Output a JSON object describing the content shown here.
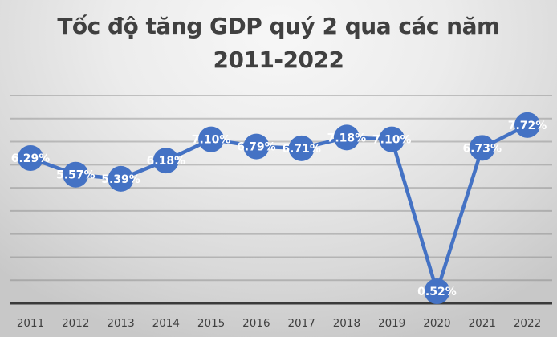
{
  "chart_data": {
    "type": "line",
    "title": "Tốc độ tăng GDP quý 2 qua các năm 2011-2022",
    "title_lines": [
      "Tốc độ tăng GDP quý 2 qua các năm",
      "2011-2022"
    ],
    "xlabel": "",
    "ylabel": "",
    "categories": [
      "2011",
      "2012",
      "2013",
      "2014",
      "2015",
      "2016",
      "2017",
      "2018",
      "2019",
      "2020",
      "2021",
      "2022"
    ],
    "series": [
      {
        "name": "Tốc độ tăng GDP quý 2",
        "values": [
          6.29,
          5.57,
          5.39,
          6.18,
          7.1,
          6.79,
          6.71,
          7.18,
          7.1,
          0.52,
          6.73,
          7.72
        ],
        "labels": [
          "6.29%",
          "5.57%",
          "5.39%",
          "6.18%",
          "7.10%",
          "6.79%",
          "6.71%",
          "7.18%",
          "7.10%",
          "0.52%",
          "6.73%",
          "7.72%"
        ],
        "color": "#4472c4"
      }
    ],
    "ylim": [
      0,
      9
    ],
    "y_axis_visible": false,
    "grid": true,
    "gridline_step": 1,
    "legend": "none"
  }
}
